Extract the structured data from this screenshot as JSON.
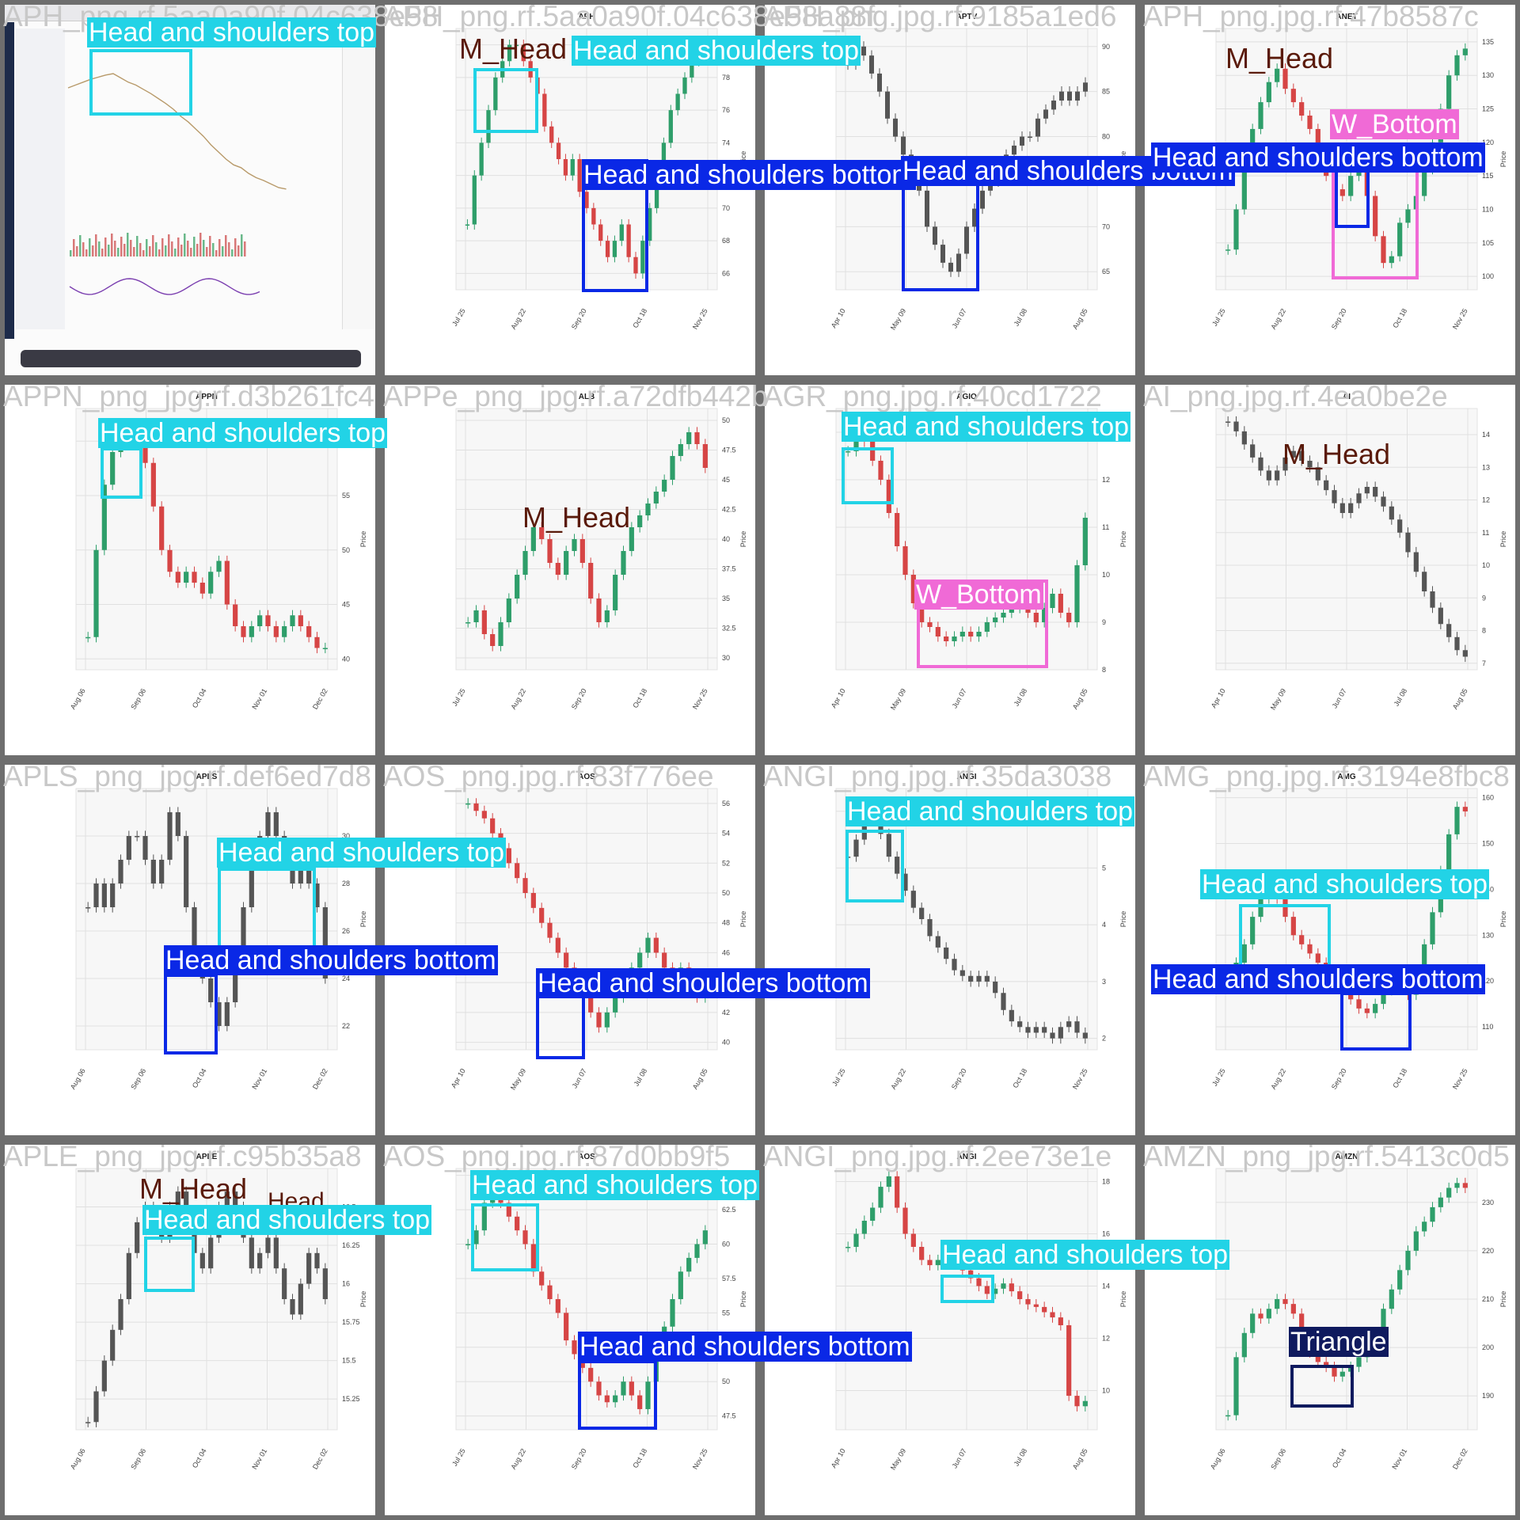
{
  "grid": {
    "cols": 4,
    "rows": 4
  },
  "colors": {
    "Head and shoulders top": "#22d3e6",
    "Head and shoulders bottom": "#0a28e6",
    "W_Bottom": "#f06ad6",
    "Triangle": "#0f1a5e",
    "M_Head": "#5a1a0a",
    "up": "#2e9e6a",
    "down": "#d64545",
    "neutral": "#555555"
  },
  "cells": [
    {
      "filename": "APH_png.rf.5aa0a90f.04c638e58",
      "title": "",
      "screenshot": true,
      "annotations": [
        {
          "label": "Head and shoulders top",
          "cls": "Head and shoulders top"
        }
      ]
    },
    {
      "filename": "APH_png.rf.5aa0a90f.04c638e58a88f",
      "title": "APH",
      "chart_data": {
        "type": "candlestick",
        "x_ticks": [
          "Jul 25",
          "Aug 22",
          "Sep 20",
          "Oct 18",
          "Nov 25"
        ],
        "y_ticks": [
          66,
          68,
          70,
          72,
          74,
          76,
          78,
          80
        ],
        "ylim": [
          65,
          81
        ],
        "closes": [
          69,
          72,
          74,
          76,
          78,
          79,
          80,
          80,
          79,
          78,
          77,
          75,
          74,
          73,
          72,
          73,
          71,
          70,
          69,
          68,
          67,
          68,
          69,
          67,
          66,
          68,
          70,
          72,
          74,
          76,
          77,
          78,
          79,
          80,
          80
        ]
      },
      "annotations": [
        {
          "label": "M_Head",
          "cls": "M_Head"
        },
        {
          "label": "Head and shoulders top",
          "cls": "Head and shoulders top"
        },
        {
          "label": "Head and shoulders bottom",
          "cls": "Head and shoulders bottom"
        }
      ]
    },
    {
      "filename": "APH_png.jpg.rf.9185a1ed6",
      "title": "APTV",
      "chart_data": {
        "type": "candlestick",
        "x_ticks": [
          "Apr 10",
          "May 09",
          "Jun 07",
          "Jul 08",
          "Aug 05"
        ],
        "y_ticks": [
          65,
          70,
          75,
          80,
          85,
          90
        ],
        "ylim": [
          63,
          92
        ],
        "closes": [
          88,
          90,
          89,
          87,
          85,
          82,
          80,
          78,
          76,
          74,
          70,
          68,
          66,
          65,
          67,
          70,
          72,
          74,
          75,
          77,
          78,
          79,
          80,
          80,
          82,
          83,
          84,
          85,
          84,
          85,
          86
        ]
      },
      "annotations": [
        {
          "label": "Head and shoulders bottom",
          "cls": "Head and shoulders bottom"
        }
      ]
    },
    {
      "filename": "APH_png.jpg.rf.47b8587c",
      "title": "ANET",
      "chart_data": {
        "type": "candlestick",
        "x_ticks": [
          "Jul 25",
          "Aug 22",
          "Sep 20",
          "Oct 18",
          "Nov 25"
        ],
        "y_ticks": [
          100,
          105,
          110,
          115,
          120,
          125,
          130,
          135
        ],
        "ylim": [
          98,
          137
        ],
        "closes": [
          104,
          110,
          118,
          122,
          126,
          129,
          131,
          128,
          126,
          124,
          122,
          118,
          115,
          113,
          112,
          115,
          117,
          112,
          106,
          102,
          103,
          108,
          110,
          112,
          116,
          120,
          125,
          130,
          133,
          134
        ]
      },
      "annotations": [
        {
          "label": "M_Head",
          "cls": "M_Head"
        },
        {
          "label": "W_Bottom",
          "cls": "W_Bottom"
        },
        {
          "label": "Head and shoulders bottom",
          "cls": "Head and shoulders bottom"
        }
      ]
    },
    {
      "filename": "APPN_png_jpg.rf.d3b261fc4",
      "title": "APPN",
      "chart_data": {
        "type": "candlestick",
        "x_ticks": [
          "Aug 06",
          "Sep 06",
          "Oct 04",
          "Nov 01",
          "Dec 02"
        ],
        "y_ticks": [
          40,
          45,
          50,
          55,
          60
        ],
        "ylim": [
          39,
          63
        ],
        "closes": [
          42,
          50,
          56,
          59,
          60,
          61,
          60,
          58,
          54,
          50,
          48,
          47,
          48,
          47,
          46,
          48,
          49,
          45,
          43,
          42,
          43,
          44,
          43,
          42,
          43,
          44,
          43,
          42,
          41,
          41
        ]
      },
      "annotations": [
        {
          "label": "Head and shoulders top",
          "cls": "Head and shoulders top"
        }
      ]
    },
    {
      "filename": "APPe_png_jpg.rf.a72dfb442b",
      "title": "ALB",
      "chart_data": {
        "type": "candlestick",
        "x_ticks": [
          "Jul 25",
          "Aug 22",
          "Sep 20",
          "Oct 18",
          "Nov 25"
        ],
        "y_ticks": [
          30.0,
          32.5,
          35.0,
          37.5,
          40.0,
          42.5,
          45.0,
          47.5,
          50.0
        ],
        "ylim": [
          29,
          51
        ],
        "closes": [
          33,
          34,
          32,
          31,
          33,
          35,
          37,
          39,
          41,
          40,
          38,
          37,
          39,
          40,
          38,
          35,
          33,
          34,
          37,
          39,
          41,
          42,
          43,
          44,
          45,
          47,
          48,
          49,
          48,
          46
        ]
      },
      "annotations": [
        {
          "label": "M_Head",
          "cls": "M_Head"
        }
      ]
    },
    {
      "filename": "AGR_png.jpg.rf.40cd1722",
      "title": "AGIO",
      "chart_data": {
        "type": "candlestick",
        "x_ticks": [
          "Apr 10",
          "May 09",
          "Jun 07",
          "Jul 08",
          "Aug 05"
        ],
        "y_ticks": [
          8,
          9,
          10,
          11,
          12,
          13
        ],
        "ylim": [
          8,
          13.5
        ],
        "closes": [
          12.6,
          13.0,
          12.8,
          12.4,
          12.0,
          11.3,
          10.6,
          10.0,
          9.4,
          9.0,
          8.9,
          8.7,
          8.6,
          8.7,
          8.8,
          8.7,
          8.8,
          9.0,
          9.1,
          9.2,
          9.3,
          9.4,
          9.2,
          9.0,
          9.3,
          9.6,
          9.2,
          9.0,
          10.2,
          11.2
        ]
      },
      "annotations": [
        {
          "label": "Head and shoulders top",
          "cls": "Head and shoulders top"
        },
        {
          "label": "W_Bottom",
          "cls": "W_Bottom"
        }
      ]
    },
    {
      "filename": "AI_png.jpg.rf.4ea0be2e",
      "title": "AI",
      "chart_data": {
        "type": "candlestick",
        "x_ticks": [
          "Apr 10",
          "May 09",
          "Jun 07",
          "Jul 08",
          "Aug 05"
        ],
        "y_ticks": [
          7,
          8,
          9,
          10,
          11,
          12,
          13,
          14
        ],
        "ylim": [
          6.8,
          14.8
        ],
        "closes": [
          14.4,
          14.1,
          13.7,
          13.3,
          12.9,
          12.6,
          12.9,
          13.3,
          13.5,
          13.2,
          13.0,
          12.6,
          12.3,
          11.9,
          11.6,
          11.9,
          12.2,
          12.4,
          12.1,
          11.8,
          11.4,
          11.0,
          10.4,
          9.8,
          9.2,
          8.7,
          8.2,
          7.8,
          7.4,
          7.2
        ]
      },
      "annotations": [
        {
          "label": "M_Head",
          "cls": "M_Head"
        }
      ]
    },
    {
      "filename": "APLS_png_jpg.rf.def6ed7d8",
      "title": "APLS",
      "chart_data": {
        "type": "candlestick",
        "x_ticks": [
          "Aug 06",
          "Sep 06",
          "Oct 04",
          "Nov 01",
          "Dec 02"
        ],
        "y_ticks": [
          22,
          24,
          26,
          28,
          30
        ],
        "ylim": [
          21,
          32
        ],
        "closes": [
          27,
          28,
          27,
          28,
          29,
          30,
          30,
          29,
          28,
          29,
          31,
          30,
          27,
          25,
          24,
          23,
          22,
          23,
          25,
          27,
          29,
          30,
          31,
          30,
          29,
          28,
          29,
          28,
          27,
          24
        ]
      },
      "annotations": [
        {
          "label": "Head and shoulders top",
          "cls": "Head and shoulders top"
        },
        {
          "label": "Head and shoulders bottom",
          "cls": "Head and shoulders bottom"
        }
      ]
    },
    {
      "filename": "AOS_png.jpg.rf.83f776ee",
      "title": "AOS",
      "chart_data": {
        "type": "candlestick",
        "x_ticks": [
          "Apr 10",
          "May 09",
          "Jun 07",
          "Jul 08",
          "Aug 05"
        ],
        "y_ticks": [
          40,
          42,
          44,
          46,
          48,
          50,
          52,
          54,
          56
        ],
        "ylim": [
          39.5,
          57
        ],
        "closes": [
          56,
          55.5,
          55,
          54,
          53,
          52,
          51,
          50,
          49,
          48,
          47,
          46,
          45,
          44,
          43,
          42,
          41,
          42,
          43,
          44,
          45,
          46,
          47,
          46,
          45,
          44,
          45,
          44,
          43,
          44
        ]
      },
      "annotations": [
        {
          "label": "Head and shoulders bottom",
          "cls": "Head and shoulders bottom"
        }
      ]
    },
    {
      "filename": "ANGI_png.jpg.rf.35da3038",
      "title": "ANGI",
      "chart_data": {
        "type": "candlestick",
        "x_ticks": [
          "Jul 25",
          "Aug 22",
          "Sep 20",
          "Oct 18",
          "Nov 25"
        ],
        "y_ticks": [
          2,
          3,
          4,
          5,
          6
        ],
        "ylim": [
          1.8,
          6.4
        ],
        "closes": [
          5.2,
          5.5,
          5.9,
          6.0,
          5.6,
          5.2,
          4.9,
          4.6,
          4.3,
          4.1,
          3.8,
          3.6,
          3.4,
          3.2,
          3.1,
          3.0,
          3.1,
          3.0,
          2.8,
          2.5,
          2.3,
          2.2,
          2.1,
          2.2,
          2.1,
          2.0,
          2.2,
          2.3,
          2.1,
          2.0
        ]
      },
      "annotations": [
        {
          "label": "Head and shoulders top",
          "cls": "Head and shoulders top"
        }
      ]
    },
    {
      "filename": "AMG_png.jpg.rf.3194e8fbc8",
      "title": "AMG",
      "chart_data": {
        "type": "candlestick",
        "x_ticks": [
          "Jul 25",
          "Aug 22",
          "Sep 20",
          "Oct 18",
          "Nov 25"
        ],
        "y_ticks": [
          110,
          120,
          130,
          140,
          150,
          160
        ],
        "ylim": [
          105,
          162
        ],
        "closes": [
          120,
          124,
          128,
          134,
          138,
          141,
          138,
          134,
          130,
          128,
          126,
          124,
          122,
          120,
          118,
          116,
          114,
          113,
          115,
          118,
          120,
          119,
          117,
          122,
          128,
          135,
          144,
          152,
          158,
          157
        ]
      },
      "annotations": [
        {
          "label": "Head and shoulders top",
          "cls": "Head and shoulders top"
        },
        {
          "label": "Head and shoulders bottom",
          "cls": "Head and shoulders bottom"
        }
      ]
    },
    {
      "filename": "APLE_png_jpg.rf.c95b35a8",
      "title": "APLE",
      "chart_data": {
        "type": "candlestick",
        "x_ticks": [
          "Aug 06",
          "Sep 06",
          "Oct 04",
          "Nov 01",
          "Dec 02"
        ],
        "y_ticks": [
          15.25,
          15.5,
          15.75,
          16.0,
          16.25,
          16.5
        ],
        "ylim": [
          15.05,
          16.75
        ],
        "closes": [
          15.1,
          15.3,
          15.5,
          15.7,
          15.9,
          16.2,
          16.4,
          16.5,
          16.4,
          16.3,
          16.5,
          16.6,
          16.4,
          16.2,
          16.1,
          16.3,
          16.5,
          16.6,
          16.5,
          16.3,
          16.1,
          16.2,
          16.3,
          16.1,
          15.9,
          15.8,
          16.0,
          16.2,
          16.1,
          15.9
        ]
      },
      "annotations": [
        {
          "label": "M_Head",
          "cls": "M_Head"
        },
        {
          "label": "Head",
          "cls": "M_Head"
        },
        {
          "label": "Head and shoulders top",
          "cls": "Head and shoulders top"
        }
      ]
    },
    {
      "filename": "AOS_png.jpg.rf.87d0bb9f5",
      "title": "AOS",
      "chart_data": {
        "type": "candlestick",
        "x_ticks": [
          "Jul 25",
          "Aug 22",
          "Sep 20",
          "Oct 18",
          "Nov 25"
        ],
        "y_ticks": [
          47.5,
          50.0,
          52.5,
          55.0,
          57.5,
          60.0,
          62.5,
          65.0
        ],
        "ylim": [
          46.5,
          65.5
        ],
        "closes": [
          60,
          61,
          63,
          64,
          63,
          62,
          61,
          60,
          58,
          57,
          56,
          55,
          53,
          52,
          51,
          50,
          49,
          48.5,
          49,
          50,
          49,
          48,
          50,
          52,
          54,
          56,
          58,
          59,
          60,
          61
        ]
      },
      "annotations": [
        {
          "label": "Head and shoulders top",
          "cls": "Head and shoulders top"
        },
        {
          "label": "Head and shoulders bottom",
          "cls": "Head and shoulders bottom"
        }
      ]
    },
    {
      "filename": "ANGI_png.jpg.rf.2ee73e1e",
      "title": "ANGI",
      "chart_data": {
        "type": "candlestick",
        "x_ticks": [
          "Apr 10",
          "May 09",
          "Jun 07",
          "Jul 08",
          "Aug 05"
        ],
        "y_ticks": [
          10,
          12,
          14,
          16,
          18
        ],
        "ylim": [
          8.5,
          18.5
        ],
        "closes": [
          15.5,
          16,
          16.5,
          17,
          17.8,
          18.2,
          17,
          16,
          15.5,
          15,
          14.8,
          15,
          15.2,
          14.9,
          14.6,
          14.3,
          14,
          13.7,
          13.9,
          14.1,
          13.8,
          13.5,
          13.3,
          13.2,
          13.0,
          12.8,
          12.5,
          9.8,
          9.4,
          9.6
        ]
      },
      "annotations": [
        {
          "label": "Head and shoulders top",
          "cls": "Head and shoulders top"
        }
      ]
    },
    {
      "filename": "AMZN_png_jpg.rf.5413c0d5",
      "title": "AMZN",
      "chart_data": {
        "type": "candlestick",
        "x_ticks": [
          "Aug 06",
          "Sep 06",
          "Oct 04",
          "Nov 01",
          "Dec 02"
        ],
        "y_ticks": [
          190,
          200,
          210,
          220,
          230
        ],
        "ylim": [
          183,
          237
        ],
        "closes": [
          186,
          198,
          203,
          207,
          206,
          208,
          210,
          209,
          207,
          203,
          199,
          197,
          196,
          194,
          195,
          196,
          198,
          200,
          203,
          208,
          212,
          216,
          220,
          224,
          226,
          229,
          231,
          233,
          234,
          233
        ]
      },
      "annotations": [
        {
          "label": "Triangle",
          "cls": "Triangle"
        }
      ]
    }
  ]
}
